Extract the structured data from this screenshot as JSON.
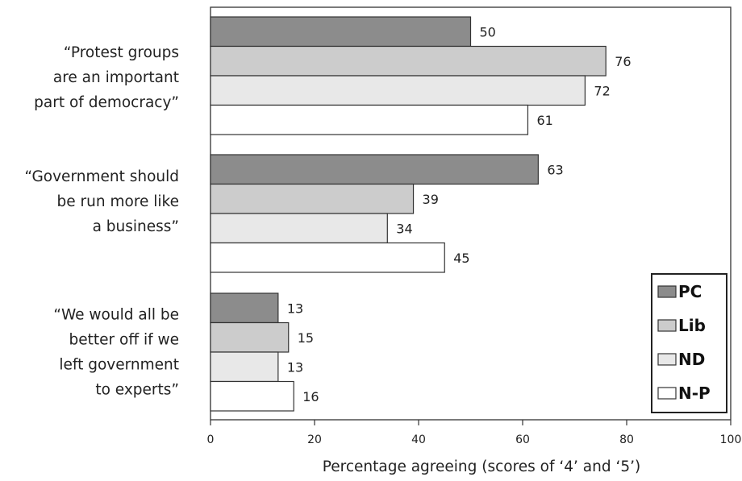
{
  "chart_data": {
    "type": "bar",
    "orientation": "horizontal",
    "categories": [
      [
        "“Protest groups",
        "are an important",
        "part of democracy”"
      ],
      [
        "“Government should",
        "be run more like",
        "a business”"
      ],
      [
        "“We would all be",
        "better off if we",
        "left government",
        "to experts”"
      ]
    ],
    "series": [
      {
        "name": "PC",
        "color": "#8c8c8c",
        "values": [
          50,
          63,
          13
        ]
      },
      {
        "name": "Lib",
        "color": "#cccccc",
        "values": [
          76,
          39,
          15
        ]
      },
      {
        "name": "ND",
        "color": "#e8e8e8",
        "values": [
          72,
          34,
          13
        ]
      },
      {
        "name": "N-P",
        "color": "#ffffff",
        "values": [
          61,
          45,
          16
        ]
      }
    ],
    "xlabel": "Percentage agreeing (scores of ‘4’ and ‘5’)",
    "xlim": [
      0,
      100
    ],
    "xticks": [
      0,
      20,
      40,
      60,
      80,
      100
    ],
    "grid": false,
    "legend_position": "bottom-right"
  }
}
